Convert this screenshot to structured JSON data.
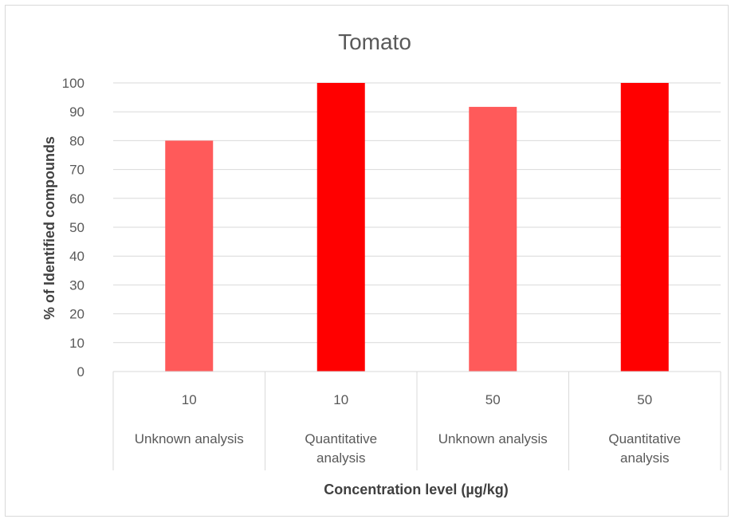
{
  "chart_data": {
    "type": "bar",
    "title": "Tomato",
    "ylabel": "% of Identified compounds",
    "xlabel": "Concentration level (µg/kg)",
    "ylim": [
      0,
      100
    ],
    "yticks": [
      0,
      10,
      20,
      30,
      40,
      50,
      60,
      70,
      80,
      90,
      100
    ],
    "grid": true,
    "legend": "none",
    "categories": [
      {
        "level": "10",
        "label_lines": [
          "Unknown analysis"
        ],
        "value": 80,
        "color": "#ff5a5a"
      },
      {
        "level": "10",
        "label_lines": [
          "Quantitative",
          "analysis"
        ],
        "value": 100,
        "color": "#ff0000"
      },
      {
        "level": "50",
        "label_lines": [
          "Unknown analysis"
        ],
        "value": 91.7,
        "color": "#ff5a5a"
      },
      {
        "level": "50",
        "label_lines": [
          "Quantitative",
          "analysis"
        ],
        "value": 100,
        "color": "#ff0000"
      }
    ]
  }
}
